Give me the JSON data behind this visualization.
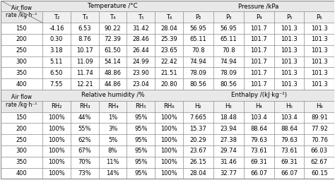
{
  "top_section_header1": "Temperature /°C",
  "top_section_header2": "Pressure /kPa",
  "bottom_section_header1": "Relative humidity /%",
  "bottom_section_header2": "Enthalpy /(kJ·kg⁻¹)",
  "col_header_row1": [
    "Air flow\nrate /kg·h⁻¹",
    "T₂",
    "T₃",
    "T₄",
    "T₅",
    "T₆",
    "P₂",
    "P₃",
    "P₄",
    "P₅",
    "P₆"
  ],
  "col_header_row2": [
    "",
    "RH₂",
    "RH₃",
    "RH₄",
    "RH₅",
    "RH₆",
    "H₂",
    "H₃",
    "H₄",
    "H₅",
    "H₆"
  ],
  "air_flow_rates": [
    150,
    200,
    250,
    300,
    350,
    400
  ],
  "temperature_data": [
    [
      "-4.16",
      "6.53",
      "90.22",
      "31.42",
      "28.04"
    ],
    [
      "0.30",
      "8.76",
      "72.39",
      "28.46",
      "25.39"
    ],
    [
      "3.18",
      "10.17",
      "61.50",
      "26.44",
      "23.65"
    ],
    [
      "5.11",
      "11.09",
      "54.14",
      "24.99",
      "22.42"
    ],
    [
      "6.50",
      "11.74",
      "48.86",
      "23.90",
      "21.51"
    ],
    [
      "7.55",
      "12.21",
      "44.86",
      "23.04",
      "20.80"
    ]
  ],
  "pressure_data": [
    [
      "56.95",
      "56.95",
      "101.7",
      "101.3",
      "101.3"
    ],
    [
      "65.11",
      "65.11",
      "101.7",
      "101.3",
      "101.3"
    ],
    [
      "70.8",
      "70.8",
      "101.7",
      "101.3",
      "101.3"
    ],
    [
      "74.94",
      "74.94",
      "101.7",
      "101.3",
      "101.3"
    ],
    [
      "78.09",
      "78.09",
      "101.7",
      "101.3",
      "101.3"
    ],
    [
      "80.56",
      "80.56",
      "101.7",
      "101.3",
      "101.3"
    ]
  ],
  "humidity_data": [
    [
      "100%",
      "44%",
      "1%",
      "95%",
      "100%"
    ],
    [
      "100%",
      "55%",
      "3%",
      "95%",
      "100%"
    ],
    [
      "100%",
      "62%",
      "5%",
      "95%",
      "100%"
    ],
    [
      "100%",
      "67%",
      "8%",
      "95%",
      "100%"
    ],
    [
      "100%",
      "70%",
      "11%",
      "95%",
      "100%"
    ],
    [
      "100%",
      "73%",
      "14%",
      "95%",
      "100%"
    ]
  ],
  "enthalpy_data": [
    [
      "7.665",
      "18.48",
      "103.4",
      "103.4",
      "89.91"
    ],
    [
      "15.37",
      "23.94",
      "88.64",
      "88.64",
      "77.92"
    ],
    [
      "20.29",
      "27.38",
      "79.63",
      "79.63",
      "70.76"
    ],
    [
      "23.67",
      "29.74",
      "73.61",
      "73.61",
      "66.03"
    ],
    [
      "26.15",
      "31.46",
      "69.31",
      "69.31",
      "62.67"
    ],
    [
      "28.04",
      "32.77",
      "66.07",
      "66.07",
      "60.15"
    ]
  ],
  "bg_color": "#ffffff",
  "header_bg": "#d0d0d0",
  "line_color": "#888888",
  "text_color": "#000000",
  "font_size": 6.0,
  "header_font_size": 6.2
}
